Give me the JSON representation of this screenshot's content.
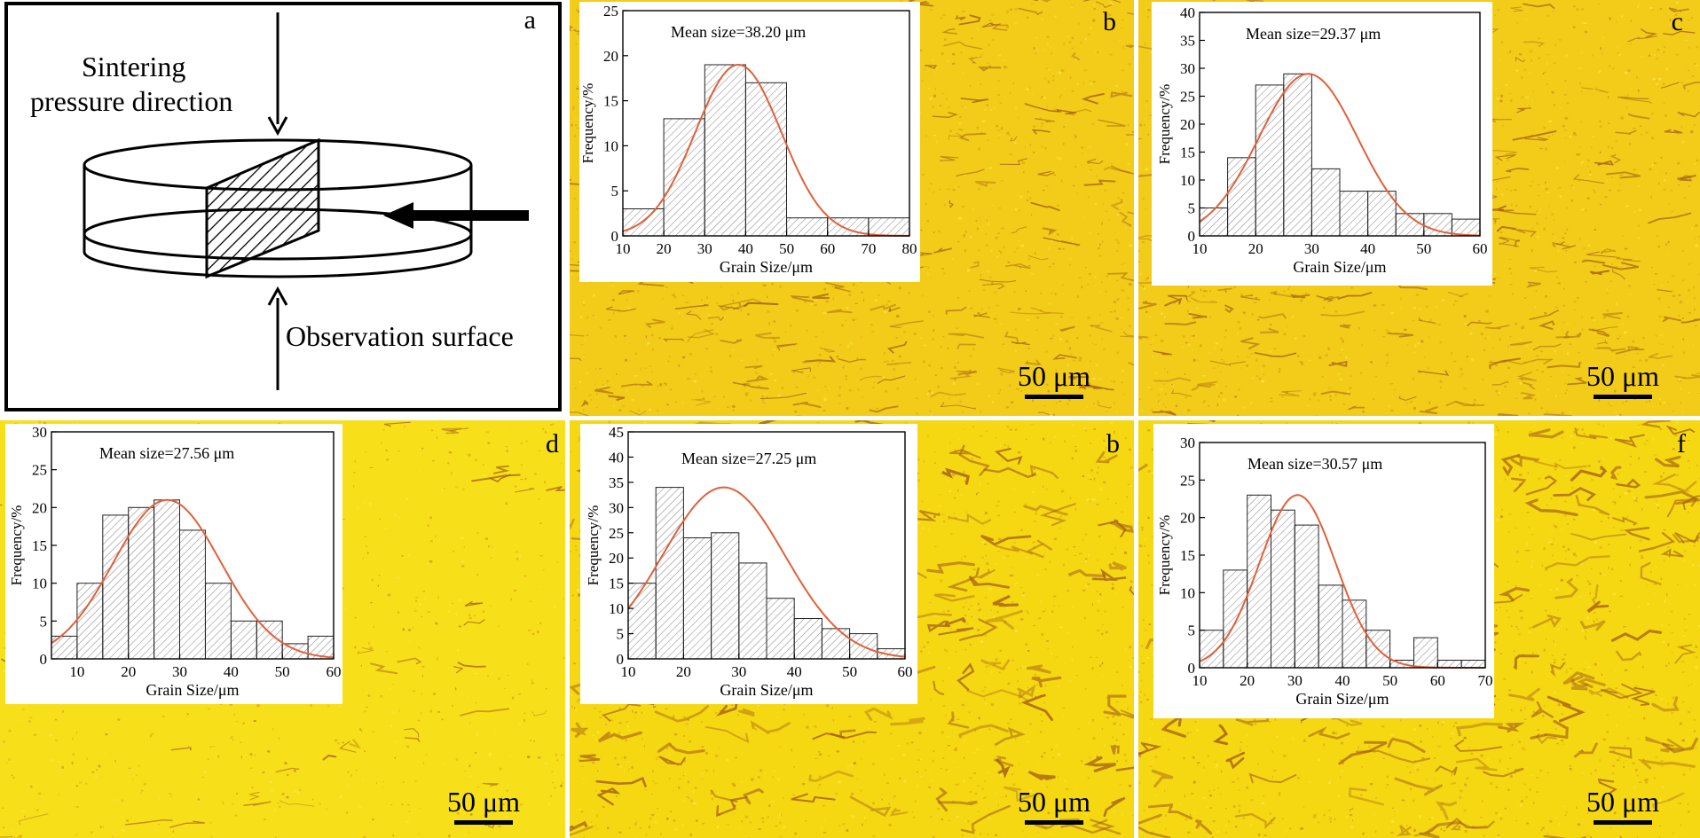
{
  "colors": {
    "background": "#ffffff",
    "micrograph_base": "#f5d210",
    "micrograph_dark": "#8a4a10",
    "grain_boundary": "#a05a15",
    "fit_curve": "#e0603a",
    "bar_fill": "#f4f4f4",
    "bar_hatch": "#8a8a8a",
    "axis": "#000000"
  },
  "schematic": {
    "panel_letter": "a",
    "label_pressure_line1": "Sintering",
    "label_pressure_line2": "pressure direction",
    "label_surface": "Observation surface",
    "icons": [
      "pressure-arrow-icon",
      "observation-arrow-icon",
      "cylinder-sample-icon",
      "hatched-section-icon",
      "bold-view-arrow-icon"
    ]
  },
  "panels": [
    {
      "letter": "b",
      "scale_bar": "50 μm",
      "texture": "fine"
    },
    {
      "letter": "c",
      "scale_bar": "50 μm",
      "texture": "fine"
    },
    {
      "letter": "d",
      "scale_bar": "50 μm",
      "texture": "bright"
    },
    {
      "letter": "b",
      "scale_bar": "50 μm",
      "texture": "cells"
    },
    {
      "letter": "f",
      "scale_bar": "50 μm",
      "texture": "cells"
    }
  ],
  "chart_data": [
    {
      "type": "bar",
      "panel": "b",
      "annotation": "Mean size=38.20 μm",
      "xlabel": "Grain Size/μm",
      "ylabel": "Frequency/%",
      "xlim": [
        10,
        80
      ],
      "ylim": [
        0,
        25
      ],
      "xticks": [
        "10",
        "20",
        "30",
        "40",
        "50",
        "60",
        "70",
        "80"
      ],
      "yticks": [
        "0",
        "5",
        "10",
        "15",
        "20",
        "25"
      ],
      "bin_width": 10,
      "bin_starts": [
        10,
        20,
        30,
        40,
        50,
        60,
        70
      ],
      "values": [
        3,
        13,
        19,
        17,
        2,
        2,
        2
      ],
      "fit": {
        "type": "gaussian",
        "center": 38.2,
        "peak": 19,
        "sigma": 10.5
      }
    },
    {
      "type": "bar",
      "panel": "c",
      "annotation": "Mean size=29.37 μm",
      "xlabel": "Grain Size/μm",
      "ylabel": "Frequency/%",
      "xlim": [
        10,
        60
      ],
      "ylim": [
        0,
        40
      ],
      "xticks": [
        "10",
        "20",
        "30",
        "40",
        "50",
        "60"
      ],
      "yticks": [
        "0",
        "5",
        "10",
        "15",
        "20",
        "25",
        "30",
        "35",
        "40"
      ],
      "bin_width": 5,
      "bin_starts": [
        10,
        15,
        20,
        25,
        30,
        35,
        40,
        45,
        50,
        55
      ],
      "values": [
        5,
        14,
        27,
        29,
        12,
        8,
        8,
        4,
        4,
        3
      ],
      "fit": {
        "type": "gaussian",
        "center": 29.37,
        "peak": 29,
        "sigma": 8.8
      }
    },
    {
      "type": "bar",
      "panel": "d",
      "annotation": "Mean size=27.56 μm",
      "xlabel": "Grain Size/μm",
      "ylabel": "Frequency/%",
      "xlim": [
        5,
        60
      ],
      "ylim": [
        0,
        30
      ],
      "xticks": [
        "10",
        "20",
        "30",
        "40",
        "50",
        "60"
      ],
      "yticks": [
        "0",
        "5",
        "10",
        "15",
        "20",
        "25",
        "30"
      ],
      "bin_width": 5,
      "bin_starts": [
        5,
        10,
        15,
        20,
        25,
        30,
        35,
        40,
        45,
        50,
        55
      ],
      "values": [
        3,
        10,
        19,
        20,
        21,
        17,
        10,
        5,
        5,
        2,
        3
      ],
      "fit": {
        "type": "gaussian",
        "center": 27.56,
        "peak": 21,
        "sigma": 10.5
      }
    },
    {
      "type": "bar",
      "panel": "b",
      "annotation": "Mean size=27.25 μm",
      "xlabel": "Grain Size/μm",
      "ylabel": "Frequency/%",
      "xlim": [
        10,
        60
      ],
      "ylim": [
        0,
        45
      ],
      "xticks": [
        "10",
        "20",
        "30",
        "40",
        "50",
        "60"
      ],
      "yticks": [
        "0",
        "5",
        "10",
        "15",
        "20",
        "25",
        "30",
        "35",
        "40",
        "45"
      ],
      "bin_width": 5,
      "bin_starts": [
        10,
        15,
        20,
        25,
        30,
        35,
        40,
        45,
        50,
        55
      ],
      "values": [
        15,
        34,
        24,
        25,
        19,
        12,
        8,
        6,
        5,
        2
      ],
      "fit": {
        "type": "gaussian",
        "center": 27.25,
        "peak": 34,
        "sigma": 11
      }
    },
    {
      "type": "bar",
      "panel": "f",
      "annotation": "Mean size=30.57 μm",
      "xlabel": "Grain Size/μm",
      "ylabel": "Frequency/%",
      "xlim": [
        10,
        70
      ],
      "ylim": [
        0,
        30
      ],
      "xticks": [
        "10",
        "20",
        "30",
        "40",
        "50",
        "60",
        "70"
      ],
      "yticks": [
        "0",
        "5",
        "10",
        "15",
        "20",
        "25",
        "30"
      ],
      "bin_width": 5,
      "bin_starts": [
        10,
        15,
        20,
        25,
        30,
        35,
        40,
        45,
        50,
        55,
        60,
        65
      ],
      "values": [
        5,
        13,
        23,
        21,
        19,
        11,
        9,
        5,
        1,
        4,
        1,
        1
      ],
      "fit": {
        "type": "gaussian",
        "center": 30.57,
        "peak": 23,
        "sigma": 8
      }
    }
  ]
}
